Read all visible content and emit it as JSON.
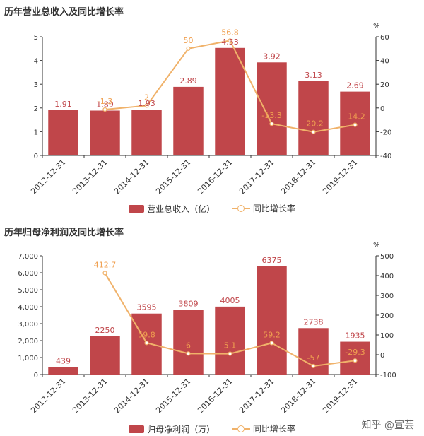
{
  "colors": {
    "bar": "#c0464a",
    "line": "#f0b26a",
    "axis": "#333333",
    "barLabel": "#c0464a",
    "lineLabel": "#f0a050"
  },
  "watermark": "知乎 @宣芸",
  "chart_data": [
    {
      "type": "bar",
      "title": "历年营业总收入及同比增长率",
      "categories": [
        "2012-12-31",
        "2013-12-31",
        "2014-12-31",
        "2015-12-31",
        "2016-12-31",
        "2017-12-31",
        "2018-12-31",
        "2019-12-31"
      ],
      "series": [
        {
          "name": "营业总收入（亿）",
          "type": "bar",
          "axis": "left",
          "values": [
            1.91,
            1.89,
            1.93,
            2.89,
            4.53,
            3.92,
            3.13,
            2.69
          ],
          "labels": [
            "1.91",
            "1.89",
            "1.93",
            "2.89",
            "4.53",
            "3.92",
            "3.13",
            "2.69"
          ]
        },
        {
          "name": "同比增长率",
          "type": "line",
          "axis": "right",
          "values": [
            null,
            -1.3,
            2,
            50,
            56.8,
            -13.3,
            -20.2,
            -14.2
          ],
          "labels": [
            "",
            "-1.3",
            "2",
            "50",
            "56.8",
            "-13.3",
            "-20.2",
            "-14.2"
          ]
        }
      ],
      "ylim_left": [
        0,
        5
      ],
      "yticks_left": [
        "0",
        "1",
        "2",
        "3",
        "4",
        "5"
      ],
      "ylim_right": [
        -40,
        60
      ],
      "yticks_right": [
        "-40",
        "-20",
        "0",
        "20",
        "40",
        "60"
      ],
      "right_unit": "%",
      "legend_position": "bottom"
    },
    {
      "type": "bar",
      "title": "历年归母净利润及同比增长率",
      "categories": [
        "2012-12-31",
        "2013-12-31",
        "2014-12-31",
        "2015-12-31",
        "2016-12-31",
        "2017-12-31",
        "2018-12-31",
        "2019-12-31"
      ],
      "series": [
        {
          "name": "归母净利润（万）",
          "type": "bar",
          "axis": "left",
          "values": [
            439,
            2250,
            3595,
            3809,
            4005,
            6375,
            2738,
            1935
          ],
          "labels": [
            "439",
            "2250",
            "3595",
            "3809",
            "4005",
            "6375",
            "2738",
            "1935"
          ]
        },
        {
          "name": "同比增长率",
          "type": "line",
          "axis": "right",
          "values": [
            null,
            412.7,
            59.8,
            6,
            5.1,
            59.2,
            -57,
            -29.3
          ],
          "labels": [
            "",
            "412.7",
            "59.8",
            "6",
            "5.1",
            "59.2",
            "-57",
            "-29.3"
          ]
        }
      ],
      "ylim_left": [
        0,
        7000
      ],
      "yticks_left": [
        "0",
        "1,000",
        "2,000",
        "3,000",
        "4,000",
        "5,000",
        "6,000",
        "7,000"
      ],
      "ylim_right": [
        -100,
        500
      ],
      "yticks_right": [
        "-100",
        "0",
        "100",
        "200",
        "300",
        "400",
        "500"
      ],
      "right_unit": "%",
      "legend_position": "bottom"
    }
  ]
}
